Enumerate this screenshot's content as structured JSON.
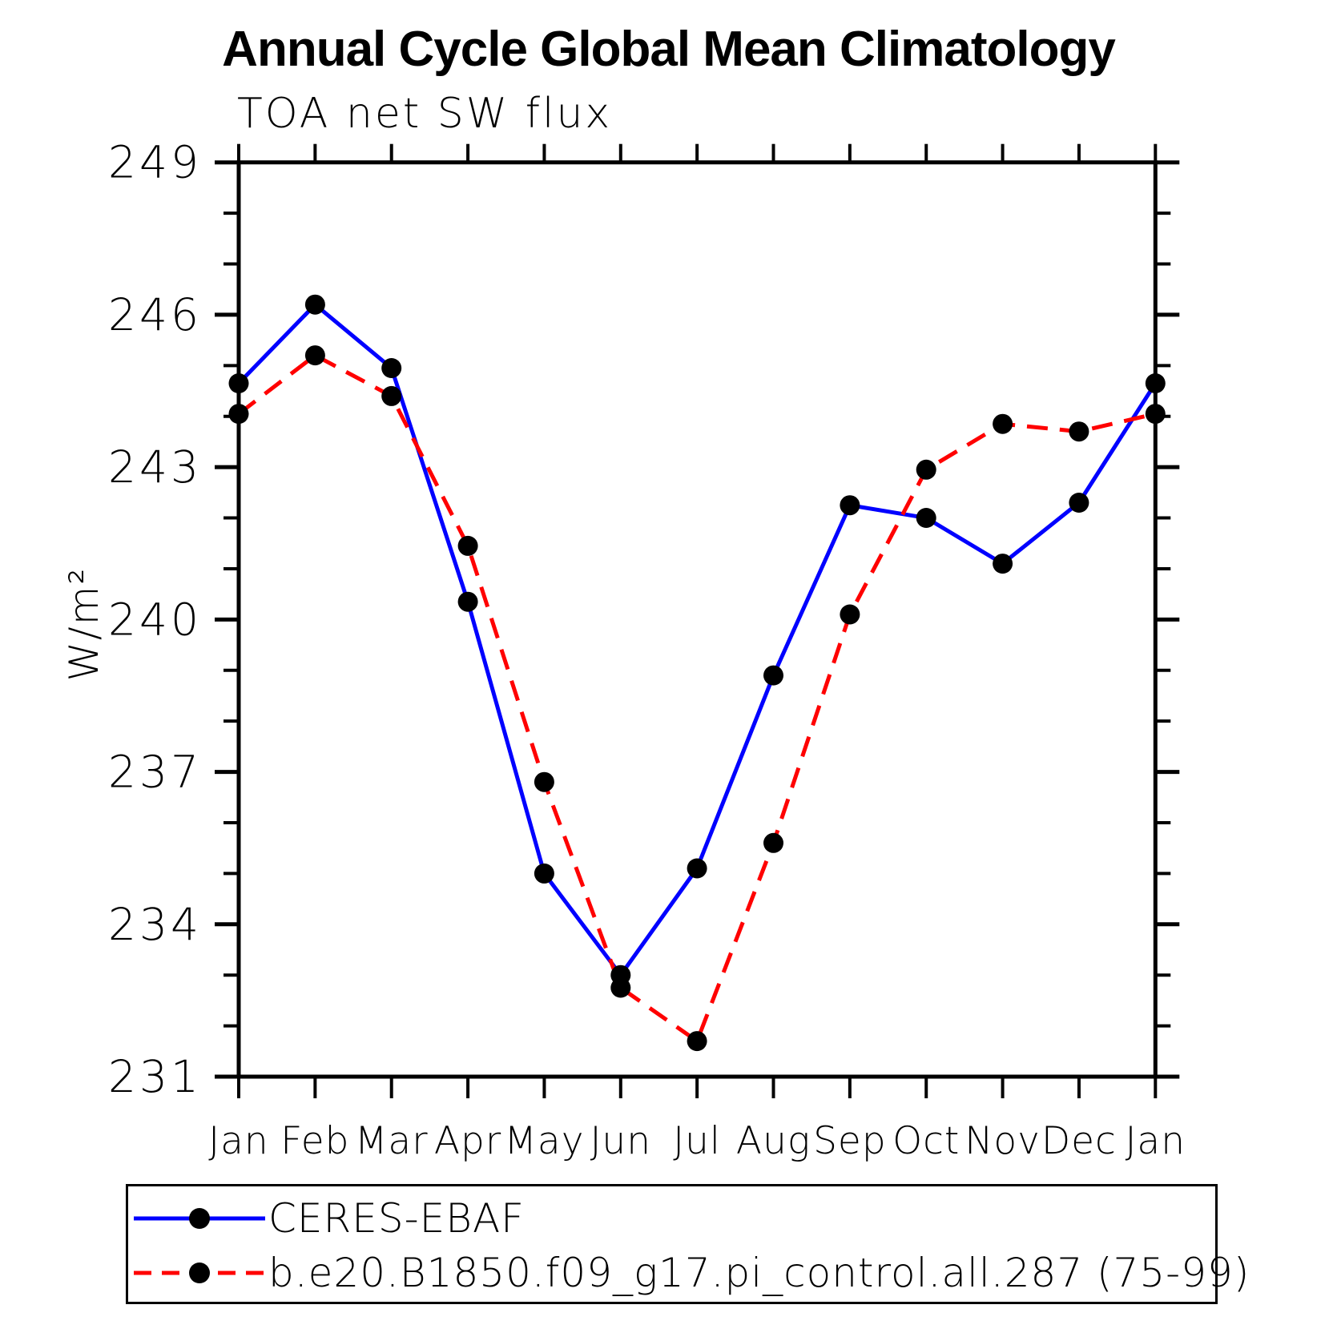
{
  "chart_data": {
    "type": "line",
    "title": "Annual Cycle Global Mean Climatology",
    "subtitle": "TOA net SW flux",
    "ylabel": "W/m²",
    "xlabel": "",
    "categories": [
      "Jan",
      "Feb",
      "Mar",
      "Apr",
      "May",
      "Jun",
      "Jul",
      "Aug",
      "Sep",
      "Oct",
      "Nov",
      "Dec",
      "Jan"
    ],
    "y_tick_labels": [
      "249",
      "246",
      "243",
      "240",
      "237",
      "234",
      "231"
    ],
    "ylim": [
      231,
      249
    ],
    "y_major_step": 3,
    "y_minor_step": 1,
    "grid": "off",
    "legend_position": "bottom-box",
    "marker_color": "#000000",
    "series": [
      {
        "name": "CERES-EBAF",
        "color": "#0000ff",
        "style": "solid",
        "marker": "circle",
        "values": [
          244.65,
          246.2,
          244.95,
          240.35,
          235.0,
          233.0,
          235.1,
          238.9,
          242.25,
          242.0,
          241.1,
          242.3,
          244.65
        ]
      },
      {
        "name": "b.e20.B1850.f09_g17.pi_control.all.287 (75-99)",
        "color": "#ff0000",
        "style": "dashed",
        "marker": "circle",
        "values": [
          244.05,
          245.2,
          244.4,
          241.45,
          236.8,
          232.75,
          231.7,
          235.6,
          240.1,
          242.95,
          243.85,
          243.7,
          244.05
        ]
      }
    ]
  }
}
